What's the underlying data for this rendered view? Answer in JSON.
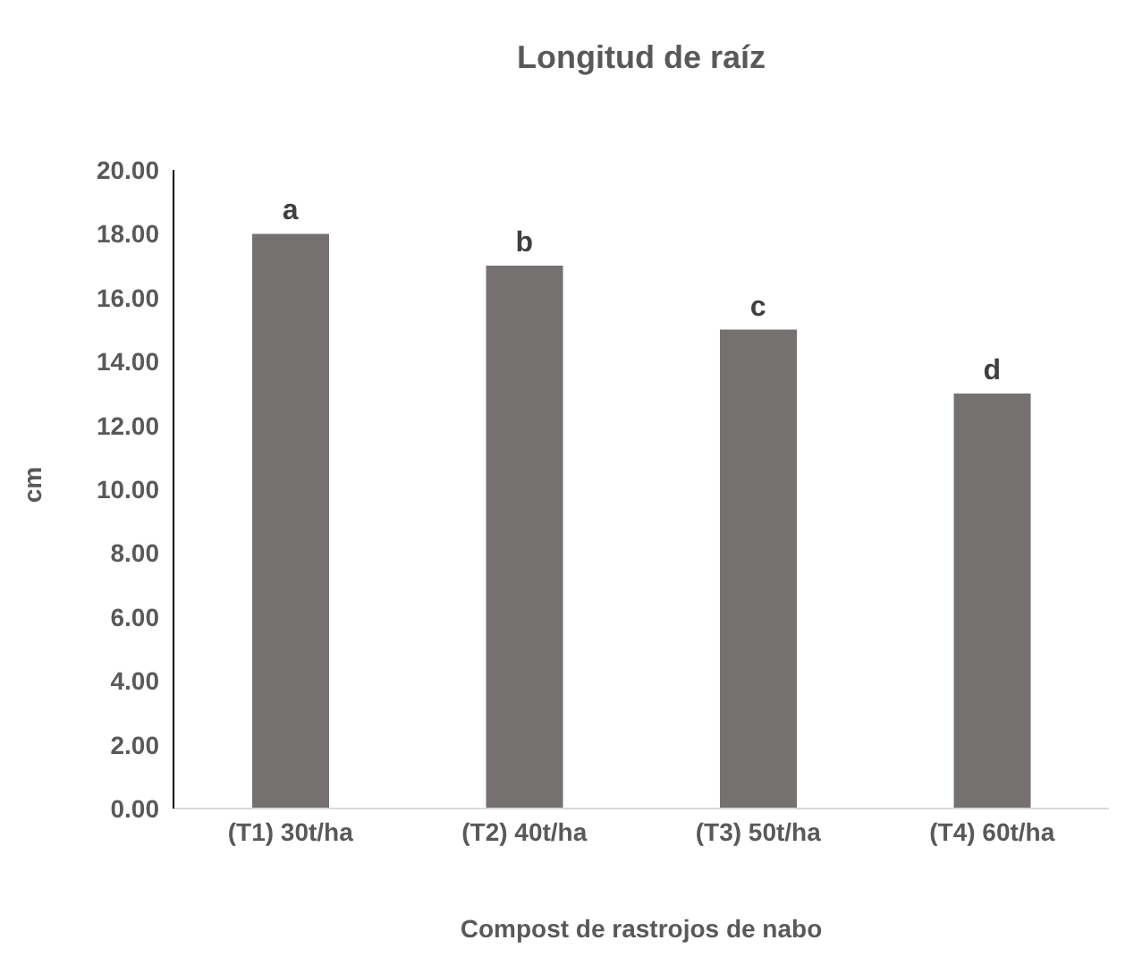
{
  "chart_data": {
    "type": "bar",
    "title": "Longitud de raíz",
    "xlabel": "Compost de rastrojos de nabo",
    "ylabel": "cm",
    "categories": [
      "(T1) 30t/ha",
      "(T2) 40t/ha",
      "(T3) 50t/ha",
      "(T4) 60t/ha"
    ],
    "values": [
      18,
      17,
      15,
      13
    ],
    "color": "#767171",
    "ylim": [
      0,
      20
    ],
    "yticks": [
      {
        "value": 0,
        "label": "0.00"
      },
      {
        "value": 2,
        "label": "2.00"
      },
      {
        "value": 4,
        "label": "4.00"
      },
      {
        "value": 6,
        "label": "6.00"
      },
      {
        "value": 8,
        "label": "8.00"
      },
      {
        "value": 10,
        "label": "10.00"
      },
      {
        "value": 12,
        "label": "12.00"
      },
      {
        "value": 14,
        "label": "14.00"
      },
      {
        "value": 16,
        "label": "16.00"
      },
      {
        "value": 18,
        "label": "18.00"
      },
      {
        "value": 20,
        "label": "20.00"
      }
    ],
    "annotations": [
      {
        "text": "a",
        "x": "(T1) 30t/ha",
        "y": 18
      },
      {
        "text": "b",
        "x": "(T2) 40t/ha",
        "y": 17
      },
      {
        "text": "c",
        "x": "(T3) 50t/ha",
        "y": 15
      },
      {
        "text": "d",
        "x": "(T4) 60t/ha",
        "y": 13
      }
    ],
    "grid": false,
    "legend": false
  }
}
